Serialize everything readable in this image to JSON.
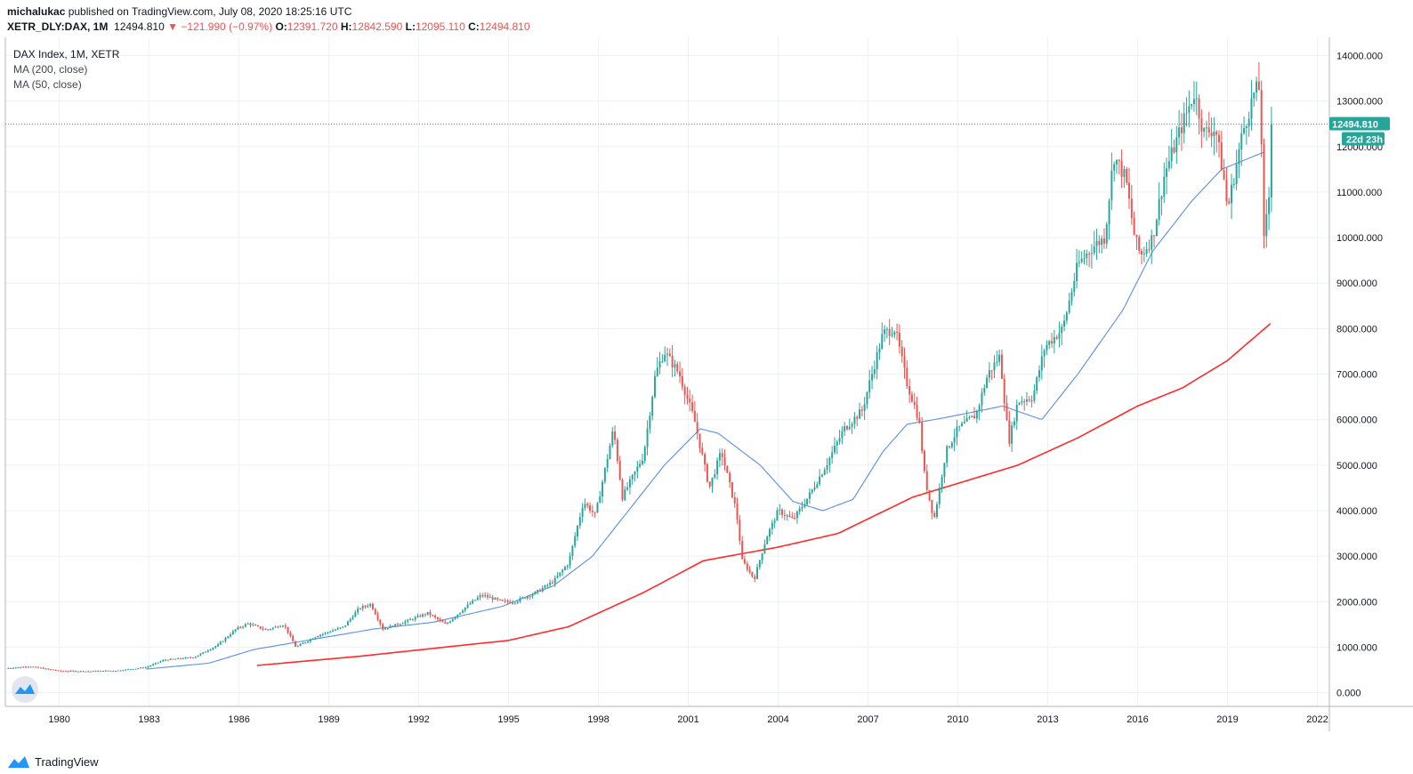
{
  "header": {
    "author": "michalukac",
    "published_text": " published on TradingView.com, July 08, 2020 18:25:16 UTC",
    "symbol": "XETR_DLY:DAX, 1M",
    "last": "12494.810",
    "arrow": "▼",
    "change": "−121.990 (−0.97%)",
    "open_label": "O:",
    "open_value": "12391.720",
    "high_label": "H:",
    "high_value": "12842.590",
    "low_label": "L:",
    "low_value": "12095.110",
    "close_label": "C:",
    "close_value": "12494.810"
  },
  "legend": {
    "title": "DAX Index, 1M, XETR",
    "ma200": "MA (200, close)",
    "ma50": "MA (50, close)"
  },
  "price_tag": {
    "value": "12494.810",
    "countdown": "22d 23h"
  },
  "footer": {
    "brand": "TradingView",
    "logo_icon": "tradingview-logo-icon"
  },
  "colors": {
    "up": "#26a69a",
    "down": "#ef5350",
    "ma50": "#5b8ee6",
    "ma200": "#ff2a2a",
    "grid": "#eef1f6"
  },
  "chart_data": {
    "type": "candlestick",
    "title": "DAX Index, 1M, XETR",
    "y_ticks": [
      0,
      1000,
      2000,
      3000,
      4000,
      5000,
      6000,
      7000,
      8000,
      9000,
      10000,
      11000,
      12000,
      13000,
      14000
    ],
    "y_tick_labels": [
      "0.000",
      "1000.000",
      "2000.000",
      "3000.000",
      "4000.000",
      "5000.000",
      "6000.000",
      "7000.000",
      "8000.000",
      "9000.000",
      "10000.000",
      "11000.000",
      "12000.000",
      "13000.000",
      "14000.000"
    ],
    "x_ticks": [
      1980,
      1983,
      1986,
      1989,
      1992,
      1995,
      1998,
      2001,
      2004,
      2007,
      2010,
      2013,
      2016,
      2019,
      2022
    ],
    "x_tick_labels": [
      "1980",
      "1983",
      "1986",
      "1989",
      "1992",
      "1995",
      "1998",
      "2001",
      "2004",
      "2007",
      "2010",
      "2013",
      "2016",
      "2019",
      "2022"
    ],
    "x_range": [
      1978.2,
      2022.4
    ],
    "y_range": [
      -300,
      14400
    ],
    "last_price": 12494.81,
    "price_anchors": [
      [
        1978.3,
        540
      ],
      [
        1979.0,
        580
      ],
      [
        1980.0,
        480
      ],
      [
        1981.0,
        470
      ],
      [
        1982.0,
        490
      ],
      [
        1982.9,
        560
      ],
      [
        1983.5,
        720
      ],
      [
        1984.5,
        780
      ],
      [
        1985.3,
        1050
      ],
      [
        1985.9,
        1400
      ],
      [
        1986.3,
        1520
      ],
      [
        1986.9,
        1380
      ],
      [
        1987.5,
        1500
      ],
      [
        1987.9,
        1000
      ],
      [
        1988.6,
        1250
      ],
      [
        1989.5,
        1450
      ],
      [
        1990.0,
        1850
      ],
      [
        1990.4,
        1950
      ],
      [
        1990.8,
        1400
      ],
      [
        1991.5,
        1550
      ],
      [
        1992.3,
        1750
      ],
      [
        1992.9,
        1500
      ],
      [
        1993.6,
        1900
      ],
      [
        1994.1,
        2150
      ],
      [
        1994.8,
        2000
      ],
      [
        1995.2,
        2000
      ],
      [
        1995.9,
        2200
      ],
      [
        1996.5,
        2450
      ],
      [
        1997.0,
        2850
      ],
      [
        1997.5,
        4200
      ],
      [
        1997.9,
        3900
      ],
      [
        1998.5,
        5800
      ],
      [
        1998.8,
        4300
      ],
      [
        1999.5,
        5200
      ],
      [
        1999.9,
        7000
      ],
      [
        2000.2,
        7500
      ],
      [
        2000.7,
        7000
      ],
      [
        2001.2,
        6000
      ],
      [
        2001.7,
        4500
      ],
      [
        2002.1,
        5300
      ],
      [
        2002.6,
        4000
      ],
      [
        2002.8,
        2900
      ],
      [
        2003.2,
        2500
      ],
      [
        2003.6,
        3400
      ],
      [
        2004.0,
        4000
      ],
      [
        2004.5,
        3800
      ],
      [
        2005.0,
        4300
      ],
      [
        2005.6,
        5000
      ],
      [
        2006.2,
        5800
      ],
      [
        2006.8,
        6200
      ],
      [
        2007.5,
        7900
      ],
      [
        2007.9,
        8000
      ],
      [
        2008.3,
        6800
      ],
      [
        2008.7,
        6000
      ],
      [
        2008.9,
        4700
      ],
      [
        2009.2,
        3800
      ],
      [
        2009.6,
        5300
      ],
      [
        2010.0,
        5800
      ],
      [
        2010.6,
        6100
      ],
      [
        2011.0,
        7000
      ],
      [
        2011.4,
        7400
      ],
      [
        2011.7,
        5500
      ],
      [
        2012.0,
        6400
      ],
      [
        2012.5,
        6500
      ],
      [
        2012.9,
        7600
      ],
      [
        2013.5,
        8000
      ],
      [
        2014.0,
        9400
      ],
      [
        2014.5,
        9800
      ],
      [
        2014.9,
        10000
      ],
      [
        2015.2,
        11800
      ],
      [
        2015.6,
        11300
      ],
      [
        2015.9,
        10000
      ],
      [
        2016.1,
        9600
      ],
      [
        2016.5,
        10000
      ],
      [
        2016.9,
        11400
      ],
      [
        2017.5,
        12500
      ],
      [
        2017.9,
        13200
      ],
      [
        2018.2,
        12300
      ],
      [
        2018.6,
        12400
      ],
      [
        2018.9,
        11200
      ],
      [
        2019.0,
        10600
      ],
      [
        2019.5,
        12300
      ],
      [
        2019.9,
        13200
      ],
      [
        2020.1,
        13300
      ],
      [
        2020.2,
        9800
      ],
      [
        2020.4,
        11000
      ],
      [
        2020.5,
        12494.81
      ]
    ],
    "ma50_anchors": [
      [
        1982.9,
        520
      ],
      [
        1985.0,
        650
      ],
      [
        1986.5,
        950
      ],
      [
        1988.0,
        1120
      ],
      [
        1990.5,
        1400
      ],
      [
        1992.5,
        1550
      ],
      [
        1994.8,
        1900
      ],
      [
        1996.5,
        2350
      ],
      [
        1997.8,
        3000
      ],
      [
        1999.0,
        4000
      ],
      [
        2000.2,
        5000
      ],
      [
        2001.4,
        5800
      ],
      [
        2002.0,
        5700
      ],
      [
        2003.4,
        5000
      ],
      [
        2004.5,
        4200
      ],
      [
        2005.5,
        4000
      ],
      [
        2006.5,
        4250
      ],
      [
        2007.5,
        5300
      ],
      [
        2008.3,
        5900
      ],
      [
        2009.2,
        6000
      ],
      [
        2010.0,
        6100
      ],
      [
        2011.5,
        6300
      ],
      [
        2012.8,
        6000
      ],
      [
        2014.0,
        7000
      ],
      [
        2015.5,
        8400
      ],
      [
        2016.5,
        9700
      ],
      [
        2017.8,
        10800
      ],
      [
        2018.8,
        11500
      ],
      [
        2020.3,
        11900
      ]
    ],
    "ma200_anchors": [
      [
        1986.6,
        600
      ],
      [
        1990.0,
        800
      ],
      [
        1995.0,
        1150
      ],
      [
        1997.0,
        1450
      ],
      [
        1999.5,
        2200
      ],
      [
        2001.5,
        2900
      ],
      [
        2004.0,
        3200
      ],
      [
        2006.0,
        3500
      ],
      [
        2008.5,
        4300
      ],
      [
        2010.0,
        4600
      ],
      [
        2012.0,
        5000
      ],
      [
        2014.0,
        5600
      ],
      [
        2016.0,
        6300
      ],
      [
        2017.5,
        6700
      ],
      [
        2019.0,
        7300
      ],
      [
        2020.5,
        8150
      ]
    ]
  }
}
